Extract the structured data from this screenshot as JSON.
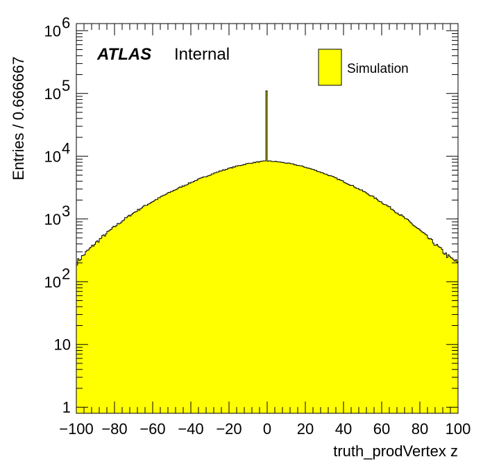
{
  "chart_data": {
    "type": "histogram",
    "xlabel": "truth_prodVertex z",
    "ylabel": "Entries / 0.666667",
    "label_bold": "ATLAS",
    "label_normal": "Internal",
    "legend": [
      {
        "name": "Simulation",
        "color": "#ffff00"
      }
    ],
    "xlim": [
      -100,
      100
    ],
    "ylim": [
      0.8,
      1300000
    ],
    "yscale": "log",
    "bin_width": 0.666667,
    "x_ticks": [
      {
        "v": -100,
        "label": "−100"
      },
      {
        "v": -80,
        "label": "−80"
      },
      {
        "v": -60,
        "label": "−60"
      },
      {
        "v": -40,
        "label": "−40"
      },
      {
        "v": -20,
        "label": "−20"
      },
      {
        "v": 0,
        "label": "0"
      },
      {
        "v": 20,
        "label": "20"
      },
      {
        "v": 40,
        "label": "40"
      },
      {
        "v": 60,
        "label": "60"
      },
      {
        "v": 80,
        "label": "80"
      },
      {
        "v": 100,
        "label": "100"
      }
    ],
    "y_ticks": [
      {
        "v": 1,
        "base": "1",
        "exp": ""
      },
      {
        "v": 10,
        "base": "10",
        "exp": ""
      },
      {
        "v": 100,
        "base": "10",
        "exp": "2"
      },
      {
        "v": 1000,
        "base": "10",
        "exp": "3"
      },
      {
        "v": 10000,
        "base": "10",
        "exp": "4"
      },
      {
        "v": 100000,
        "base": "10",
        "exp": "5"
      },
      {
        "v": 1000000,
        "base": "10",
        "exp": "6"
      }
    ],
    "profile": {
      "x": [
        -100,
        -95,
        -90,
        -85,
        -80,
        -75,
        -70,
        -65,
        -60,
        -55,
        -50,
        -45,
        -40,
        -35,
        -30,
        -25,
        -20,
        -15,
        -10,
        -5,
        0,
        5,
        10,
        15,
        20,
        25,
        30,
        35,
        40,
        45,
        50,
        55,
        60,
        65,
        70,
        75,
        80,
        85,
        90,
        95,
        100
      ],
      "y": [
        200,
        290,
        410,
        560,
        750,
        980,
        1250,
        1560,
        1900,
        2300,
        2750,
        3250,
        3800,
        4400,
        5050,
        5750,
        6400,
        7050,
        7650,
        8100,
        8400,
        8200,
        7800,
        7300,
        6700,
        6000,
        5300,
        4600,
        3950,
        3350,
        2800,
        2300,
        1850,
        1480,
        1150,
        880,
        660,
        480,
        350,
        250,
        200
      ]
    },
    "spike": {
      "x": 0,
      "y": 110000
    }
  }
}
